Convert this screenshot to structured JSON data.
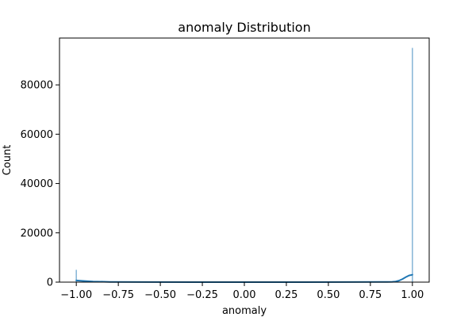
{
  "chart_data": {
    "type": "bar",
    "title": "anomaly Distribution",
    "xlabel": "anomaly",
    "ylabel": "Count",
    "xlim": [
      -1.1,
      1.1
    ],
    "ylim": [
      0,
      99000
    ],
    "x_ticks": [
      -1.0,
      -0.75,
      -0.5,
      -0.25,
      0.0,
      0.25,
      0.5,
      0.75,
      1.0
    ],
    "x_tick_labels": [
      "−1.00",
      "−0.75",
      "−0.50",
      "−0.25",
      "0.00",
      "0.25",
      "0.50",
      "0.75",
      "1.00"
    ],
    "y_ticks": [
      0,
      20000,
      40000,
      60000,
      80000
    ],
    "y_tick_labels": [
      "0",
      "20000",
      "40000",
      "60000",
      "80000"
    ],
    "bars": [
      {
        "x": -1.0,
        "value": 5000
      },
      {
        "x": 1.0,
        "value": 95000
      }
    ],
    "kde": {
      "x": [
        -1.0,
        -0.95,
        -0.9,
        -0.8,
        -0.6,
        -0.3,
        0.0,
        0.3,
        0.6,
        0.8,
        0.85,
        0.88,
        0.9,
        0.92,
        0.94,
        0.96,
        0.98,
        1.0
      ],
      "y": [
        700,
        450,
        250,
        100,
        30,
        10,
        10,
        10,
        30,
        60,
        80,
        110,
        250,
        600,
        1200,
        2000,
        2700,
        3000
      ]
    },
    "grid": false,
    "legend": "none",
    "colors": {
      "bars": "#1f77b4",
      "kde": "#1f77b4"
    }
  }
}
